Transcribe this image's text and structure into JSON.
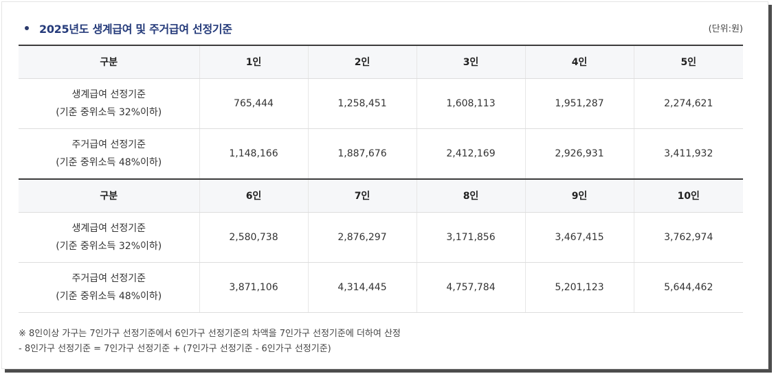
{
  "section": {
    "title": "2025년도 생계급여 및 주거급여 선정기준",
    "unit": "(단위:원)"
  },
  "table": {
    "groups": [
      {
        "header": [
          "구분",
          "1인",
          "2인",
          "3인",
          "4인",
          "5인"
        ],
        "rows": [
          {
            "label_line1": "생계급여 선정기준",
            "label_line2": "(기준 중위소득 32%이하)",
            "values": [
              "765,444",
              "1,258,451",
              "1,608,113",
              "1,951,287",
              "2,274,621"
            ]
          },
          {
            "label_line1": "주거급여 선정기준",
            "label_line2": "(기준 중위소득 48%이하)",
            "values": [
              "1,148,166",
              "1,887,676",
              "2,412,169",
              "2,926,931",
              "3,411,932"
            ]
          }
        ]
      },
      {
        "header": [
          "구분",
          "6인",
          "7인",
          "8인",
          "9인",
          "10인"
        ],
        "rows": [
          {
            "label_line1": "생계급여 선정기준",
            "label_line2": "(기준 중위소득 32%이하)",
            "values": [
              "2,580,738",
              "2,876,297",
              "3,171,856",
              "3,467,415",
              "3,762,974"
            ]
          },
          {
            "label_line1": "주거급여 선정기준",
            "label_line2": "(기준 중위소득 48%이하)",
            "values": [
              "3,871,106",
              "4,314,445",
              "4,757,784",
              "5,201,123",
              "5,644,462"
            ]
          }
        ]
      }
    ]
  },
  "notes": {
    "line1": "※ 8인이상 가구는 7인가구 선정기준에서 6인가구 선정기준의 차액을 7인가구 선정기준에 더하여 산정",
    "line2": "- 8인가구 선정기준 = 7인가구 선정기준 + (7인가구 선정기준 - 6인가구 선정기준)"
  },
  "colors": {
    "title": "#243a7a",
    "header_bg": "#f6f7f9",
    "header_border": "#3a3a3a"
  }
}
